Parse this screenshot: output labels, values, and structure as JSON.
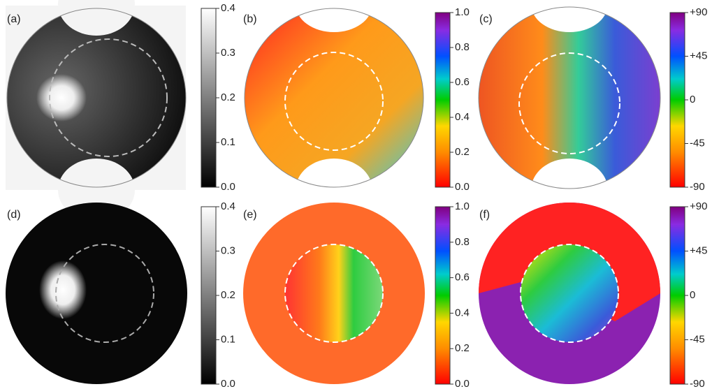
{
  "panels": [
    {
      "label": "(a)"
    },
    {
      "label": "(b)"
    },
    {
      "label": "(c)"
    },
    {
      "label": "(d)"
    },
    {
      "label": "(e)"
    },
    {
      "label": "(f)"
    }
  ],
  "colorbars": [
    {
      "ticks": [
        "0.4",
        "0.3",
        "0.2",
        "0.1",
        "0.0"
      ]
    },
    {
      "ticks": [
        "1.0",
        "0.8",
        "0.6",
        "0.4",
        "0.2",
        "0.0"
      ]
    },
    {
      "ticks": [
        "+90",
        "+45",
        "0",
        "-45",
        "-90"
      ]
    },
    {
      "ticks": [
        "0.4",
        "0.3",
        "0.2",
        "0.1",
        "0.0"
      ]
    },
    {
      "ticks": [
        "1.0",
        "0.8",
        "0.6",
        "0.4",
        "0.2",
        "0.0"
      ]
    },
    {
      "ticks": [
        "+90",
        "+45",
        "0",
        "-45",
        "-90"
      ]
    }
  ]
}
